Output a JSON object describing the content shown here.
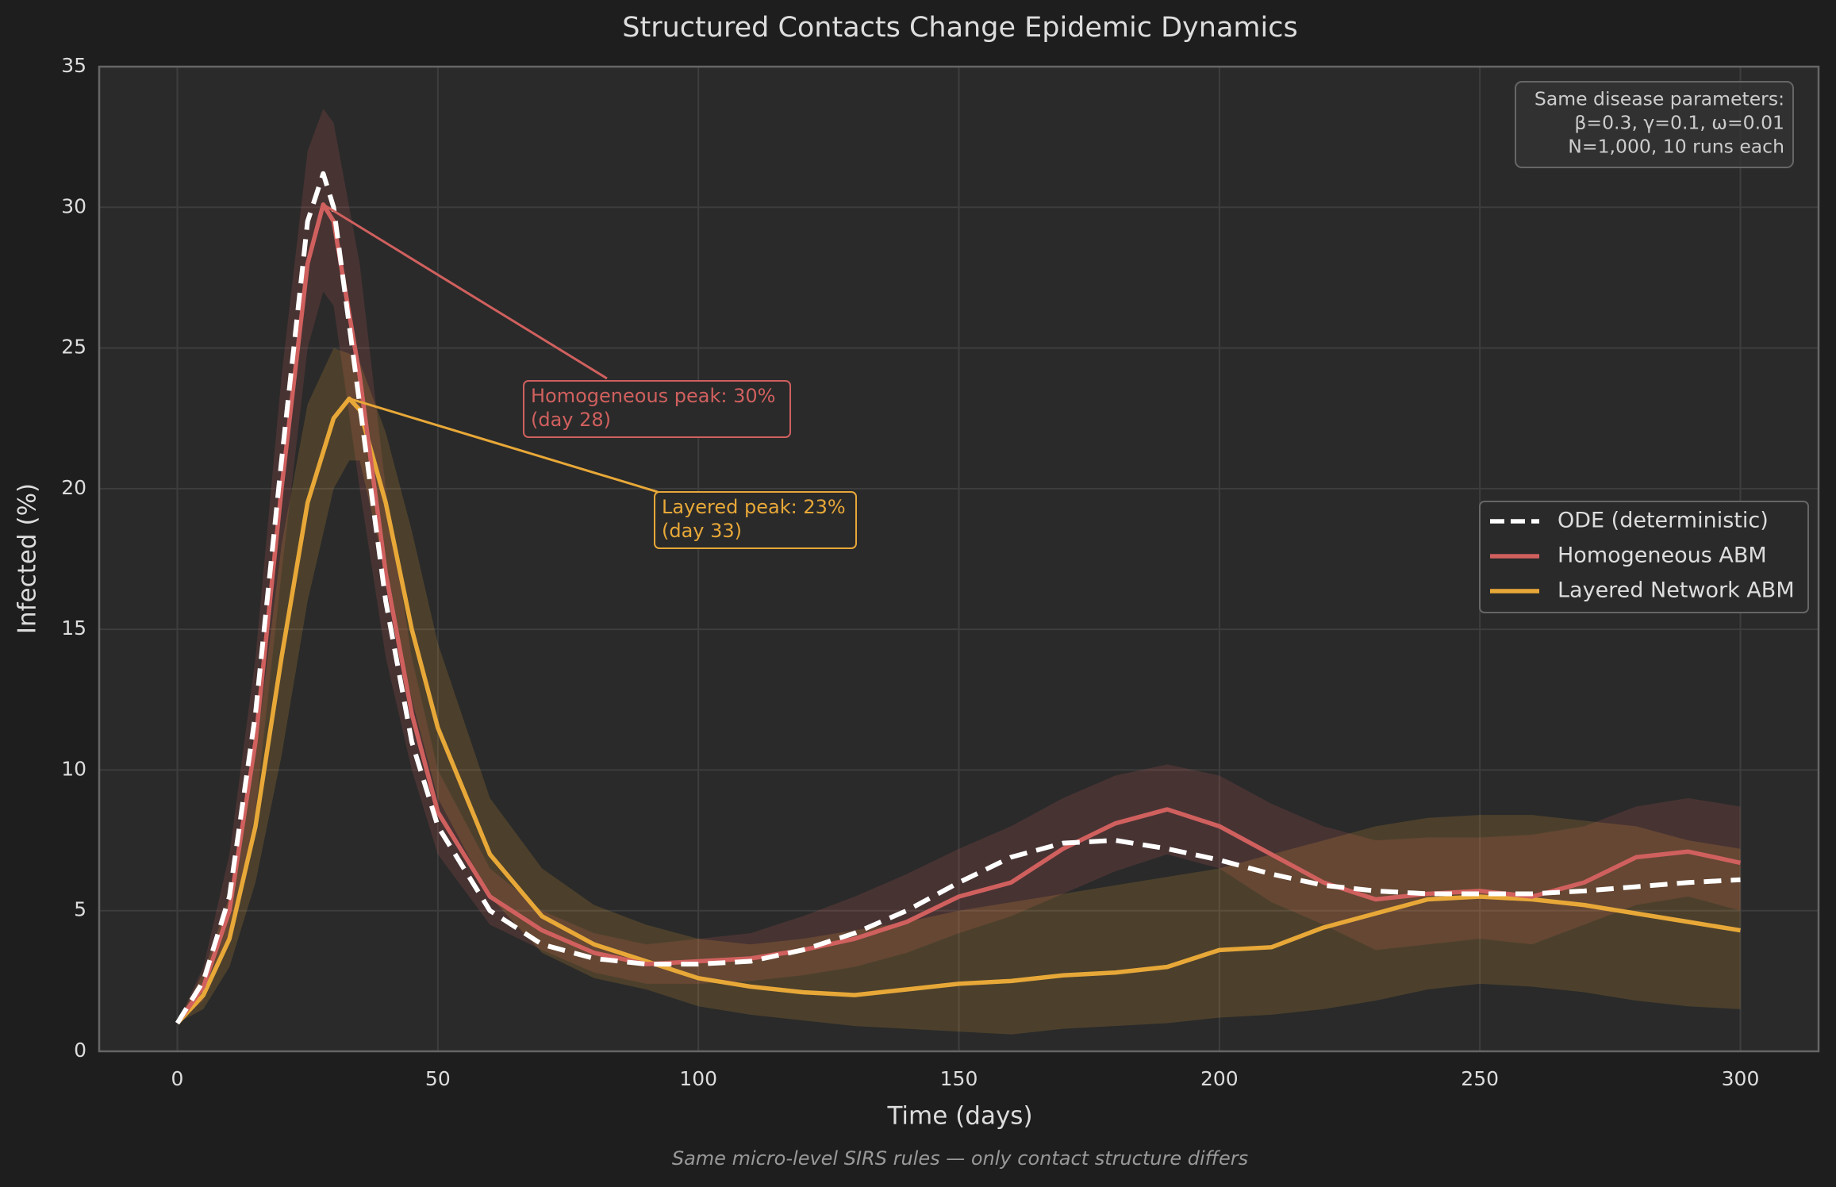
{
  "chart_data": {
    "type": "line",
    "title": "Structured Contacts Change Epidemic Dynamics",
    "xlabel": "Time (days)",
    "ylabel": "Infected (%)",
    "caption": "Same micro-level SIRS rules — only contact structure differs",
    "xlim": [
      -15,
      315
    ],
    "ylim": [
      0,
      35
    ],
    "xticks": [
      0,
      50,
      100,
      150,
      200,
      250,
      300
    ],
    "yticks": [
      0,
      5,
      10,
      15,
      20,
      25,
      30,
      35
    ],
    "grid": true,
    "legend": "right",
    "info_box": [
      "Same disease parameters:",
      "β=0.3, γ=0.1, ω=0.01",
      "N=1,000, 10 runs each"
    ],
    "series": [
      {
        "name": "ODE (deterministic)",
        "color": "#ffffff",
        "dashed": true,
        "x": [
          0,
          5,
          10,
          15,
          20,
          25,
          28,
          30,
          35,
          40,
          45,
          50,
          60,
          70,
          80,
          90,
          100,
          110,
          120,
          130,
          140,
          150,
          160,
          170,
          180,
          190,
          200,
          210,
          220,
          230,
          240,
          250,
          260,
          270,
          280,
          290,
          300
        ],
        "values": [
          1,
          2.5,
          5.5,
          12,
          21,
          29.5,
          31.2,
          30,
          23,
          16,
          11,
          8,
          5,
          3.8,
          3.3,
          3.1,
          3.1,
          3.2,
          3.6,
          4.2,
          5.0,
          6.0,
          6.9,
          7.4,
          7.5,
          7.2,
          6.8,
          6.3,
          5.9,
          5.7,
          5.6,
          5.6,
          5.6,
          5.7,
          5.85,
          6.0,
          6.1
        ]
      },
      {
        "name": "Homogeneous ABM",
        "color": "#d0605e",
        "x": [
          0,
          5,
          10,
          15,
          20,
          25,
          28,
          30,
          35,
          40,
          45,
          50,
          60,
          70,
          80,
          90,
          100,
          110,
          120,
          130,
          140,
          150,
          160,
          170,
          180,
          190,
          200,
          210,
          220,
          230,
          240,
          250,
          260,
          270,
          280,
          290,
          300
        ],
        "values": [
          1,
          2.3,
          5,
          11,
          20,
          28,
          30.1,
          29.5,
          24,
          17,
          12,
          8.5,
          5.5,
          4.3,
          3.5,
          3.1,
          3.2,
          3.3,
          3.6,
          4.0,
          4.6,
          5.5,
          6.0,
          7.2,
          8.1,
          8.6,
          8.0,
          7.0,
          6.0,
          5.4,
          5.6,
          5.7,
          5.5,
          6.0,
          6.9,
          7.1,
          6.7
        ],
        "upper": [
          1,
          3,
          7,
          14,
          24,
          32,
          33.5,
          33,
          28,
          20,
          14,
          10,
          6.5,
          5,
          4.2,
          3.8,
          4,
          4.2,
          4.8,
          5.5,
          6.3,
          7.2,
          8,
          9,
          9.8,
          10.2,
          9.8,
          8.8,
          8,
          7.5,
          7.6,
          7.6,
          7.7,
          8,
          8.7,
          9,
          8.7
        ],
        "lower": [
          1,
          1.8,
          4,
          8.5,
          17,
          25,
          27,
          26.5,
          20,
          14,
          10,
          7,
          4.5,
          3.6,
          2.8,
          2.4,
          2.4,
          2.5,
          2.7,
          3,
          3.5,
          4.2,
          4.8,
          5.6,
          6.4,
          7,
          6.5,
          5.3,
          4.5,
          3.6,
          3.8,
          4,
          3.8,
          4.5,
          5.2,
          5.5,
          5.0
        ]
      },
      {
        "name": "Layered Network ABM",
        "color": "#e8a838",
        "x": [
          0,
          5,
          10,
          15,
          20,
          25,
          30,
          33,
          35,
          40,
          45,
          50,
          60,
          70,
          80,
          90,
          100,
          110,
          120,
          130,
          140,
          150,
          160,
          170,
          180,
          190,
          200,
          210,
          220,
          230,
          240,
          250,
          260,
          270,
          280,
          290,
          300
        ],
        "values": [
          1,
          2,
          4,
          8,
          14,
          19.5,
          22.5,
          23.2,
          22.8,
          19.5,
          15,
          11.5,
          7,
          4.8,
          3.8,
          3.2,
          2.6,
          2.3,
          2.1,
          2.0,
          2.2,
          2.4,
          2.5,
          2.7,
          2.8,
          3.0,
          3.6,
          3.7,
          4.4,
          4.9,
          5.4,
          5.5,
          5.4,
          5.2,
          4.9,
          4.6,
          4.3
        ],
        "upper": [
          1,
          2.8,
          5.5,
          10.5,
          18,
          23,
          25,
          24.8,
          24.5,
          22,
          18.5,
          14.5,
          9,
          6.5,
          5.2,
          4.5,
          4,
          3.8,
          4,
          4.3,
          4.6,
          5,
          5.3,
          5.6,
          5.9,
          6.2,
          6.5,
          7,
          7.5,
          8,
          8.3,
          8.4,
          8.4,
          8.2,
          8,
          7.5,
          7.2
        ],
        "lower": [
          1,
          1.5,
          3,
          6,
          10.5,
          16,
          20,
          21,
          21,
          17,
          12.5,
          9,
          5.5,
          3.5,
          2.6,
          2.2,
          1.6,
          1.3,
          1.1,
          0.9,
          0.8,
          0.7,
          0.6,
          0.8,
          0.9,
          1,
          1.2,
          1.3,
          1.5,
          1.8,
          2.2,
          2.4,
          2.3,
          2.1,
          1.8,
          1.6,
          1.5
        ]
      }
    ],
    "annotations": [
      {
        "text": [
          "Homogeneous peak: 30%",
          "(day 28)"
        ],
        "x": 28,
        "y": 30.1,
        "color": "#d0605e"
      },
      {
        "text": [
          "Layered peak: 23%",
          "(day 33)"
        ],
        "x": 33,
        "y": 23.2,
        "color": "#e8a838"
      }
    ]
  }
}
